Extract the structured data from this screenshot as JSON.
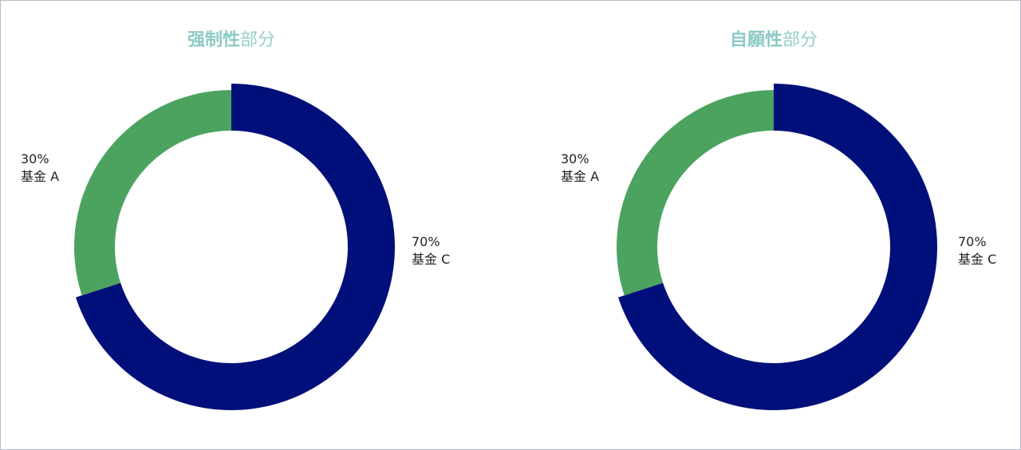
{
  "colors": {
    "fund_a": "#4ca35f",
    "fund_c": "#000f7a",
    "title": "#8ccac4"
  },
  "chart_data": [
    {
      "type": "pie",
      "variant": "donut",
      "title_bold": "强制性",
      "title_light": "部分",
      "slices": [
        {
          "label": "基金 C",
          "value": 70,
          "pct_text": "70%"
        },
        {
          "label": "基金 A",
          "value": 30,
          "pct_text": "30%"
        }
      ]
    },
    {
      "type": "pie",
      "variant": "donut",
      "title_bold": "自願性",
      "title_light": "部分",
      "slices": [
        {
          "label": "基金 C",
          "value": 70,
          "pct_text": "70%"
        },
        {
          "label": "基金 A",
          "value": 30,
          "pct_text": "30%"
        }
      ]
    }
  ]
}
